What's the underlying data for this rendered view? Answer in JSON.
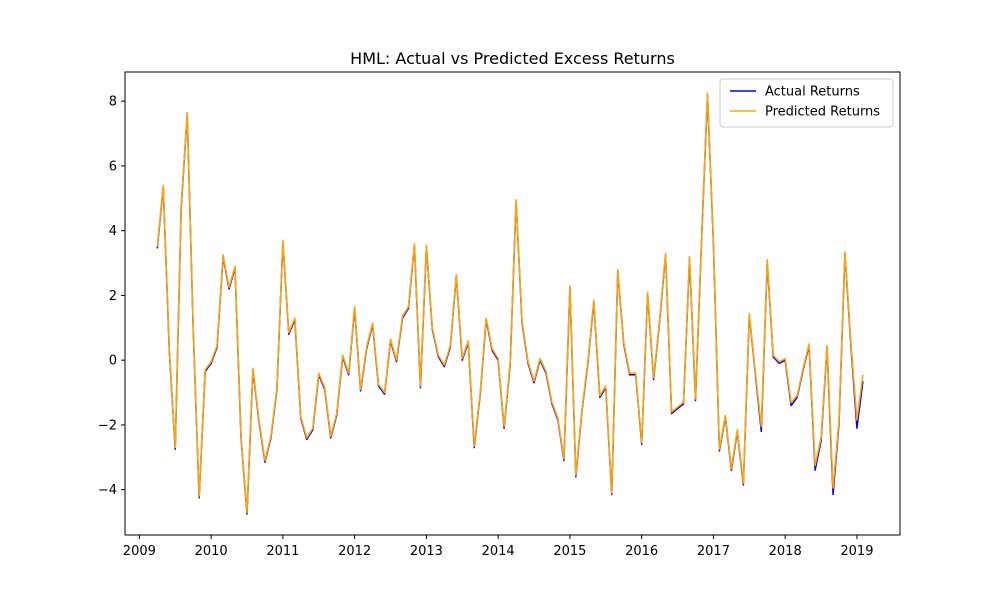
{
  "chart_data": {
    "type": "line",
    "title": "HML: Actual vs Predicted Excess Returns",
    "xlabel": "",
    "ylabel": "",
    "xlim": [
      2008.8,
      2019.6
    ],
    "ylim": [
      -5.4,
      8.9
    ],
    "x_ticks": [
      2009,
      2010,
      2011,
      2012,
      2013,
      2014,
      2015,
      2016,
      2017,
      2018,
      2019
    ],
    "x_tick_labels": [
      "2009",
      "2010",
      "2011",
      "2012",
      "2013",
      "2014",
      "2015",
      "2016",
      "2017",
      "2018",
      "2019"
    ],
    "y_ticks": [
      -4,
      -2,
      0,
      2,
      4,
      6,
      8
    ],
    "y_tick_labels": [
      "−4",
      "−2",
      "0",
      "2",
      "4",
      "6",
      "8"
    ],
    "grid": false,
    "legend_position": "top-right",
    "x": [
      2009.25,
      2009.333,
      2009.417,
      2009.5,
      2009.583,
      2009.667,
      2009.75,
      2009.833,
      2009.917,
      2010.0,
      2010.083,
      2010.167,
      2010.25,
      2010.333,
      2010.417,
      2010.5,
      2010.583,
      2010.667,
      2010.75,
      2010.833,
      2010.917,
      2011.0,
      2011.083,
      2011.167,
      2011.25,
      2011.333,
      2011.417,
      2011.5,
      2011.583,
      2011.667,
      2011.75,
      2011.833,
      2011.917,
      2012.0,
      2012.083,
      2012.167,
      2012.25,
      2012.333,
      2012.417,
      2012.5,
      2012.583,
      2012.667,
      2012.75,
      2012.833,
      2012.917,
      2013.0,
      2013.083,
      2013.167,
      2013.25,
      2013.333,
      2013.417,
      2013.5,
      2013.583,
      2013.667,
      2013.75,
      2013.833,
      2013.917,
      2014.0,
      2014.083,
      2014.167,
      2014.25,
      2014.333,
      2014.417,
      2014.5,
      2014.583,
      2014.667,
      2014.75,
      2014.833,
      2014.917,
      2015.0,
      2015.083,
      2015.167,
      2015.25,
      2015.333,
      2015.417,
      2015.5,
      2015.583,
      2015.667,
      2015.75,
      2015.833,
      2015.917,
      2016.0,
      2016.083,
      2016.167,
      2016.25,
      2016.333,
      2016.417,
      2016.5,
      2016.583,
      2016.667,
      2016.75,
      2016.833,
      2016.917,
      2017.0,
      2017.083,
      2017.167,
      2017.25,
      2017.333,
      2017.417,
      2017.5,
      2017.583,
      2017.667,
      2017.75,
      2017.833,
      2017.917,
      2018.0,
      2018.083,
      2018.167,
      2018.25,
      2018.333,
      2018.417,
      2018.5,
      2018.583,
      2018.667,
      2018.75,
      2018.833,
      2018.917,
      2019.0,
      2019.083
    ],
    "series": [
      {
        "name": "Actual Returns",
        "color": "#0000ff",
        "values": [
          3.45,
          5.35,
          0.3,
          -2.75,
          4.7,
          7.6,
          1.0,
          -4.25,
          -0.35,
          -0.1,
          0.4,
          3.2,
          2.2,
          2.85,
          -2.4,
          -4.75,
          -0.3,
          -1.9,
          -3.15,
          -2.4,
          -0.9,
          3.65,
          0.8,
          1.25,
          -1.8,
          -2.45,
          -2.15,
          -0.45,
          -0.9,
          -2.4,
          -1.7,
          0.1,
          -0.45,
          1.6,
          -0.95,
          0.35,
          1.1,
          -0.8,
          -1.05,
          0.6,
          -0.05,
          1.3,
          1.6,
          3.55,
          -0.85,
          3.5,
          0.95,
          0.1,
          -0.2,
          0.4,
          2.6,
          0.0,
          0.55,
          -2.7,
          -1.05,
          1.25,
          0.3,
          0.0,
          -2.1,
          -0.15,
          4.9,
          1.15,
          -0.1,
          -0.7,
          0.0,
          -0.4,
          -1.35,
          -1.85,
          -3.1,
          2.25,
          -3.6,
          -1.6,
          -0.1,
          1.8,
          -1.15,
          -0.85,
          -4.15,
          2.75,
          0.5,
          -0.45,
          -0.45,
          -2.6,
          2.05,
          -0.6,
          1.2,
          3.25,
          -1.65,
          -1.5,
          -1.35,
          3.15,
          -1.25,
          3.6,
          8.2,
          3.6,
          -2.8,
          -1.75,
          -3.4,
          -2.2,
          -3.85,
          1.4,
          -0.4,
          -2.2,
          3.05,
          0.1,
          -0.1,
          0.0,
          -1.4,
          -1.15,
          -0.3,
          0.45,
          -3.4,
          -2.5,
          0.4,
          -4.15,
          -1.95,
          3.3,
          0.4,
          -2.1,
          -0.65
        ]
      },
      {
        "name": "Predicted Returns",
        "color": "#ffa500",
        "values": [
          3.5,
          5.4,
          0.35,
          -2.7,
          4.75,
          7.65,
          1.05,
          -4.2,
          -0.3,
          -0.05,
          0.45,
          3.25,
          2.25,
          2.9,
          -2.35,
          -4.7,
          -0.25,
          -1.85,
          -3.1,
          -2.35,
          -0.85,
          3.7,
          0.85,
          1.3,
          -1.75,
          -2.4,
          -2.1,
          -0.4,
          -0.85,
          -2.35,
          -1.65,
          0.15,
          -0.4,
          1.65,
          -0.9,
          0.4,
          1.15,
          -0.75,
          -1.0,
          0.65,
          0.0,
          1.35,
          1.65,
          3.6,
          -0.8,
          3.55,
          1.0,
          0.15,
          -0.15,
          0.45,
          2.65,
          0.05,
          0.6,
          -2.65,
          -1.0,
          1.3,
          0.35,
          0.05,
          -2.05,
          -0.1,
          4.95,
          1.2,
          -0.05,
          -0.65,
          0.05,
          -0.35,
          -1.3,
          -1.8,
          -3.05,
          2.3,
          -3.55,
          -1.55,
          -0.05,
          1.85,
          -1.1,
          -0.8,
          -4.1,
          2.8,
          0.55,
          -0.4,
          -0.4,
          -2.55,
          2.1,
          -0.55,
          1.25,
          3.3,
          -1.6,
          -1.45,
          -1.3,
          3.2,
          -1.2,
          3.65,
          8.25,
          3.65,
          -2.75,
          -1.7,
          -3.35,
          -2.15,
          -3.8,
          1.45,
          -0.35,
          -2.05,
          3.1,
          0.15,
          -0.05,
          0.05,
          -1.3,
          -1.1,
          -0.25,
          0.5,
          -3.25,
          -2.4,
          0.45,
          -3.95,
          -1.85,
          3.35,
          0.5,
          -1.85,
          -0.45
        ]
      }
    ]
  }
}
